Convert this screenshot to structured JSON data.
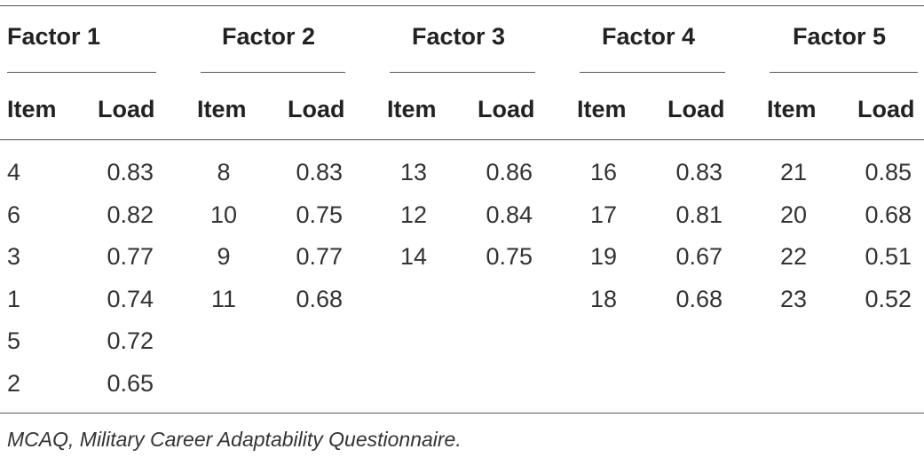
{
  "table": {
    "factors": [
      "Factor 1",
      "Factor 2",
      "Factor 3",
      "Factor 4",
      "Factor 5"
    ],
    "column_headers": [
      "Item",
      "Load"
    ],
    "groups": [
      {
        "rows": [
          [
            "4",
            "0.83"
          ],
          [
            "6",
            "0.82"
          ],
          [
            "3",
            "0.77"
          ],
          [
            "1",
            "0.74"
          ],
          [
            "5",
            "0.72"
          ],
          [
            "2",
            "0.65"
          ]
        ]
      },
      {
        "rows": [
          [
            "8",
            "0.83"
          ],
          [
            "10",
            "0.75"
          ],
          [
            "9",
            "0.77"
          ],
          [
            "11",
            "0.68"
          ]
        ]
      },
      {
        "rows": [
          [
            "13",
            "0.86"
          ],
          [
            "12",
            "0.84"
          ],
          [
            "14",
            "0.75"
          ]
        ]
      },
      {
        "rows": [
          [
            "16",
            "0.83"
          ],
          [
            "17",
            "0.81"
          ],
          [
            "19",
            "0.67"
          ],
          [
            "18",
            "0.68"
          ]
        ]
      },
      {
        "rows": [
          [
            "21",
            "0.85"
          ],
          [
            "20",
            "0.68"
          ],
          [
            "22",
            "0.51"
          ],
          [
            "23",
            "0.52"
          ]
        ]
      }
    ]
  },
  "footnote": "MCAQ, Military Career Adaptability Questionnaire."
}
